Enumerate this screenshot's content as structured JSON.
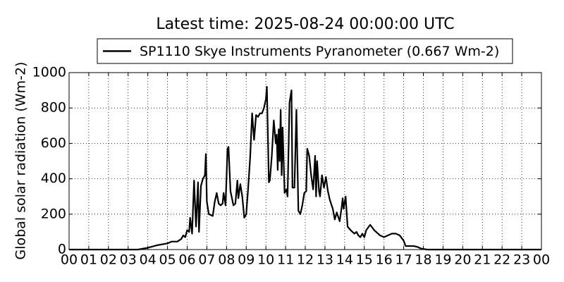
{
  "chart_data": {
    "type": "line",
    "title": "Latest time: 2025-08-24 00:00:00 UTC",
    "y_label": "Global solar radiation (Wm-2)",
    "legend_position": "upper center",
    "grid": true,
    "xlim": [
      0,
      24
    ],
    "ylim": [
      0,
      1000
    ],
    "xticks": [
      {
        "value": 0,
        "label": "00"
      },
      {
        "value": 1,
        "label": "01"
      },
      {
        "value": 2,
        "label": "02"
      },
      {
        "value": 3,
        "label": "03"
      },
      {
        "value": 4,
        "label": "04"
      },
      {
        "value": 5,
        "label": "05"
      },
      {
        "value": 6,
        "label": "06"
      },
      {
        "value": 7,
        "label": "07"
      },
      {
        "value": 8,
        "label": "08"
      },
      {
        "value": 9,
        "label": "09"
      },
      {
        "value": 10,
        "label": "10"
      },
      {
        "value": 11,
        "label": "11"
      },
      {
        "value": 12,
        "label": "12"
      },
      {
        "value": 13,
        "label": "13"
      },
      {
        "value": 14,
        "label": "14"
      },
      {
        "value": 15,
        "label": "15"
      },
      {
        "value": 16,
        "label": "16"
      },
      {
        "value": 17,
        "label": "17"
      },
      {
        "value": 18,
        "label": "18"
      },
      {
        "value": 19,
        "label": "19"
      },
      {
        "value": 20,
        "label": "20"
      },
      {
        "value": 21,
        "label": "21"
      },
      {
        "value": 22,
        "label": "22"
      },
      {
        "value": 23,
        "label": "23"
      },
      {
        "value": 24,
        "label": "00"
      }
    ],
    "yticks": [
      0,
      200,
      400,
      600,
      800,
      1000
    ],
    "x": [
      0,
      3.5,
      4.0,
      4.5,
      5.0,
      5.2,
      5.5,
      5.7,
      5.8,
      5.9,
      6.0,
      6.1,
      6.15,
      6.25,
      6.35,
      6.45,
      6.55,
      6.6,
      6.7,
      6.8,
      6.9,
      6.95,
      7.0,
      7.1,
      7.3,
      7.4,
      7.5,
      7.6,
      7.7,
      7.8,
      7.85,
      7.95,
      8.05,
      8.1,
      8.2,
      8.35,
      8.45,
      8.55,
      8.6,
      8.7,
      8.8,
      8.9,
      9.0,
      9.1,
      9.2,
      9.3,
      9.4,
      9.5,
      9.6,
      9.7,
      9.8,
      9.9,
      10.0,
      10.05,
      10.15,
      10.2,
      10.3,
      10.4,
      10.5,
      10.55,
      10.6,
      10.65,
      10.7,
      10.75,
      10.8,
      10.85,
      10.95,
      11.05,
      11.1,
      11.2,
      11.3,
      11.35,
      11.45,
      11.55,
      11.65,
      11.75,
      11.85,
      11.95,
      12.05,
      12.1,
      12.2,
      12.3,
      12.4,
      12.5,
      12.55,
      12.6,
      12.7,
      12.75,
      12.85,
      12.95,
      13.05,
      13.15,
      13.25,
      13.4,
      13.5,
      13.6,
      13.75,
      13.85,
      13.9,
      13.95,
      14.05,
      14.15,
      14.3,
      14.5,
      14.6,
      14.7,
      14.8,
      14.9,
      15.0,
      15.1,
      15.3,
      15.5,
      15.7,
      15.8,
      16.0,
      16.2,
      16.4,
      16.6,
      16.8,
      17.0,
      17.1,
      17.5,
      17.7,
      17.9,
      18.2,
      24
    ],
    "series": [
      {
        "name": "SP1110 Skye Instruments Pyranometer (0.667 Wm-2)",
        "color": "#000000",
        "values": [
          0,
          0,
          10,
          25,
          35,
          45,
          45,
          60,
          80,
          70,
          110,
          100,
          180,
          90,
          390,
          130,
          380,
          100,
          360,
          400,
          420,
          540,
          270,
          200,
          190,
          270,
          320,
          260,
          250,
          260,
          320,
          250,
          570,
          580,
          330,
          250,
          260,
          390,
          290,
          370,
          300,
          180,
          200,
          350,
          520,
          770,
          620,
          760,
          750,
          770,
          770,
          800,
          850,
          920,
          380,
          390,
          530,
          730,
          600,
          650,
          450,
          680,
          500,
          790,
          420,
          690,
          320,
          340,
          300,
          830,
          900,
          350,
          350,
          790,
          220,
          200,
          250,
          320,
          330,
          570,
          530,
          420,
          340,
          530,
          300,
          500,
          330,
          300,
          420,
          350,
          410,
          330,
          280,
          230,
          170,
          210,
          160,
          240,
          290,
          230,
          300,
          130,
          110,
          90,
          100,
          80,
          70,
          90,
          70,
          110,
          140,
          110,
          90,
          80,
          70,
          80,
          90,
          90,
          80,
          50,
          20,
          20,
          15,
          5,
          0,
          0
        ]
      }
    ]
  }
}
